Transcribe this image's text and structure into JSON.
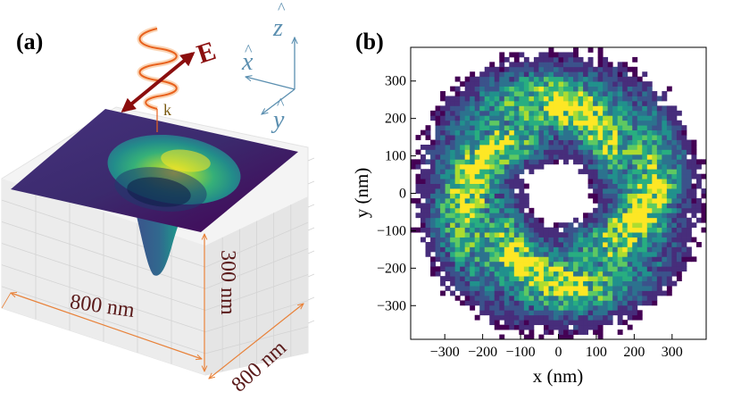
{
  "panel_a": {
    "label": "(a)",
    "field_label": "E",
    "wavevector_label": "k",
    "axis_z": "z",
    "axis_x": "x",
    "axis_y": "y",
    "dim_width": "800 nm",
    "dim_depth": "800 nm",
    "dim_height": "300 nm"
  },
  "panel_b": {
    "label": "(b)"
  },
  "colors": {
    "field_arrow": "#8b0e0e",
    "pulse": "#e8621e",
    "axes_triad": "#5b8fb0",
    "dimension": "#e8823a",
    "k_label": "#7a5a10",
    "dim_text": "#5a1a1a",
    "viridis_dark": "#440154",
    "viridis_mid": "#21918c",
    "viridis_light": "#fde725"
  },
  "chart_data": {
    "type": "heatmap",
    "title": "",
    "xlabel": "x (nm)",
    "ylabel": "y (nm)",
    "xlim": [
      -390,
      390
    ],
    "ylim": [
      -390,
      390
    ],
    "xticks": [
      -300,
      -200,
      -100,
      0,
      100,
      200,
      300
    ],
    "yticks": [
      -300,
      -200,
      -100,
      0,
      100,
      200,
      300
    ],
    "xtick_labels": [
      "−300",
      "−200",
      "−100",
      "0",
      "100",
      "200",
      "300"
    ],
    "ytick_labels": [
      "−300",
      "−200",
      "−100",
      "0",
      "100",
      "200",
      "300"
    ],
    "colormap": "viridis",
    "bin_size_nm": 13,
    "density_features": {
      "central_hole_radius_nm": 80,
      "ring_radius_nm": 220,
      "spiral_arms": 2,
      "outer_extent_nm": 390
    }
  }
}
